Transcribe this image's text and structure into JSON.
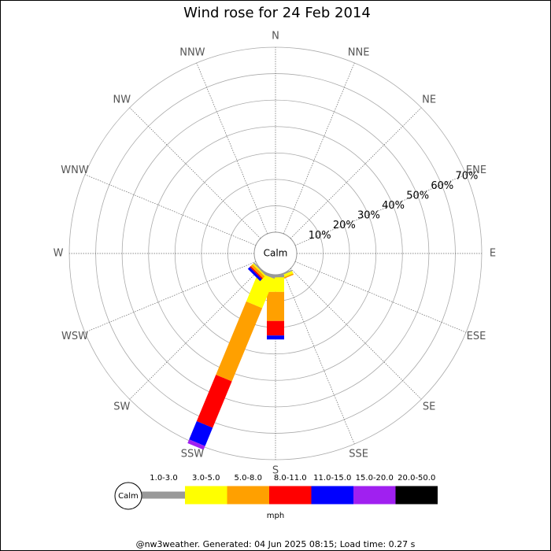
{
  "chart_data": {
    "type": "wind_rose",
    "title": "Wind rose for 24 Feb 2014",
    "calm_label": "Calm",
    "unit": "mph",
    "footer": "@nw3weather. Generated: 04 Jun 2025 08:15; Load time: 0.27 s",
    "categories": [
      "N",
      "NNE",
      "NE",
      "ENE",
      "E",
      "ESE",
      "SE",
      "SSE",
      "S",
      "SSW",
      "SW",
      "WSW",
      "W",
      "WNW",
      "NW",
      "NNW"
    ],
    "rlim": [
      0,
      70
    ],
    "rticks": [
      {
        "value": 10,
        "label": "10%"
      },
      {
        "value": 20,
        "label": "20%"
      },
      {
        "value": 30,
        "label": "30%"
      },
      {
        "value": 40,
        "label": "40%"
      },
      {
        "value": 50,
        "label": "50%"
      },
      {
        "value": 60,
        "label": "60%"
      },
      {
        "value": 70,
        "label": "70%"
      }
    ],
    "grid": true,
    "series": [
      {
        "name": "1.0-3.0",
        "color": "#999999",
        "values": [
          0,
          0,
          0,
          0,
          0,
          0,
          0,
          0.5,
          1,
          1,
          0.5,
          0,
          0,
          0,
          0,
          0
        ]
      },
      {
        "name": "3.0-5.0",
        "color": "#ffff00",
        "values": [
          0,
          0,
          0,
          0,
          0,
          0,
          0,
          1,
          5.5,
          12,
          0.5,
          0,
          0,
          0,
          0,
          0
        ]
      },
      {
        "name": "5.0-8.0",
        "color": "#ffa000",
        "values": [
          0,
          0,
          0,
          0,
          0,
          0,
          0,
          0.5,
          11,
          30,
          1,
          0,
          0,
          0,
          0,
          0
        ]
      },
      {
        "name": "8.0-11.0",
        "color": "#ff0000",
        "values": [
          0,
          0,
          0,
          0,
          0,
          0,
          0,
          0,
          5.5,
          19,
          0.5,
          0,
          0,
          0,
          0,
          0
        ]
      },
      {
        "name": "11.0-15.0",
        "color": "#0000ff",
        "values": [
          0,
          0,
          0,
          0,
          0,
          0,
          0,
          0,
          1.5,
          7.5,
          1,
          0,
          0,
          0,
          0,
          0
        ]
      },
      {
        "name": "15.0-20.0",
        "color": "#a020f0",
        "values": [
          0,
          0,
          0,
          0,
          0,
          0,
          0,
          0,
          0,
          1.5,
          0,
          0,
          0,
          0,
          0,
          0
        ]
      },
      {
        "name": "20.0-50.0",
        "color": "#000000",
        "values": [
          0,
          0,
          0,
          0,
          0,
          0,
          0,
          0,
          0,
          0,
          0,
          0,
          0,
          0,
          0,
          0
        ]
      }
    ]
  }
}
